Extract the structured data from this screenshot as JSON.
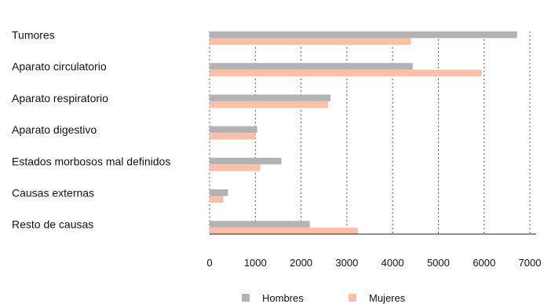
{
  "chart_data": {
    "type": "bar",
    "orientation": "horizontal",
    "categories": [
      "Tumores",
      "Aparato circulatorio",
      "Aparato respiratorio",
      "Aparato digestivo",
      "Estados morbosos mal definidos",
      "Causas externas",
      "Resto de causas"
    ],
    "series": [
      {
        "name": "Hombres",
        "color": "#b3b3b3",
        "values": [
          6720,
          4440,
          2640,
          1040,
          1570,
          400,
          2190
        ]
      },
      {
        "name": "Mujeres",
        "color": "#fbbfa6",
        "values": [
          4400,
          5950,
          2590,
          1000,
          1110,
          300,
          3240
        ]
      }
    ],
    "x_ticks": [
      "0",
      "1000",
      "2000",
      "3000",
      "4000",
      "5000",
      "6000",
      "7000"
    ],
    "xlim": [
      0,
      7000
    ],
    "grid": "vertical dashed",
    "legend_placement": "bottom"
  }
}
